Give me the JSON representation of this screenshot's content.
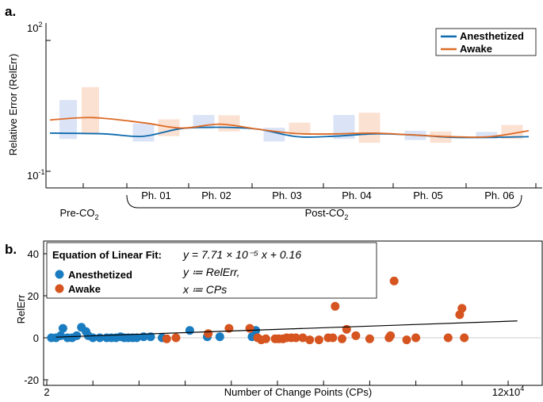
{
  "figure": {
    "panel_a_label": "a.",
    "panel_b_label": "b."
  },
  "chart_data": [
    {
      "type": "line",
      "panel": "a",
      "ylabel": "Relative Error (RelErr)",
      "yscale": "log",
      "ylim": [
        0.1,
        100
      ],
      "ytick_labels": {
        "top_base": "10",
        "top_exp": "2",
        "bottom_base": "10",
        "bottom_exp": "-1"
      },
      "categories": [
        "Pre-CO2",
        "Ph. 01",
        "Ph. 02",
        "Ph. 03",
        "Ph.  04",
        "Ph. 05",
        "Ph. 06"
      ],
      "category_labels": {
        "pre_base": "Pre-CO",
        "pre_sub": "2",
        "post_base": "Post-CO",
        "post_sub": "2",
        "phases": [
          "Ph. 01",
          "Ph. 02",
          "Ph. 03",
          "Ph.  04",
          "Ph. 05",
          "Ph. 06"
        ]
      },
      "legend": {
        "position": "top-right"
      },
      "colors": {
        "Anesthetized": "#0e6aad",
        "Awake": "#dd6a26",
        "Anesthetized_box": "#dbe4f6",
        "Awake_box": "#fbe1d2"
      },
      "series": [
        {
          "name": "Anesthetized",
          "ranges": [
            [
              0.55,
              4.3
            ],
            [
              0.48,
              1.25
            ],
            [
              0.95,
              1.95
            ],
            [
              0.48,
              1.0
            ],
            [
              0.55,
              1.95
            ],
            [
              0.52,
              0.85
            ],
            [
              0.56,
              0.8
            ]
          ],
          "curve": [
            [
              0.3,
              0.75
            ],
            [
              1.0,
              0.72
            ],
            [
              1.5,
              0.63
            ],
            [
              2.0,
              0.95
            ],
            [
              2.5,
              1.02
            ],
            [
              3.0,
              0.92
            ],
            [
              3.5,
              0.62
            ],
            [
              4.0,
              0.64
            ],
            [
              4.5,
              0.72
            ],
            [
              5.0,
              0.68
            ],
            [
              5.5,
              0.6
            ],
            [
              6.0,
              0.6
            ],
            [
              6.5,
              0.62
            ]
          ]
        },
        {
          "name": "Awake",
          "ranges": [
            [
              0.75,
              8.5
            ],
            [
              0.64,
              1.55
            ],
            [
              0.82,
              1.92
            ],
            [
              0.7,
              1.3
            ],
            [
              0.45,
              2.2
            ],
            [
              0.45,
              0.82
            ],
            [
              0.55,
              1.15
            ]
          ],
          "curve": [
            [
              0.3,
              1.5
            ],
            [
              0.85,
              1.7
            ],
            [
              1.5,
              1.3
            ],
            [
              2.0,
              0.98
            ],
            [
              2.5,
              1.2
            ],
            [
              3.0,
              0.92
            ],
            [
              3.5,
              0.73
            ],
            [
              4.0,
              0.72
            ],
            [
              4.5,
              0.75
            ],
            [
              5.0,
              0.68
            ],
            [
              5.5,
              0.62
            ],
            [
              6.0,
              0.62
            ],
            [
              6.5,
              0.85
            ]
          ]
        }
      ]
    },
    {
      "type": "scatter",
      "panel": "b",
      "xlabel": "Number of Change Points (CPs)",
      "ylabel": "RelErr",
      "xlim": [
        20000,
        120000
      ],
      "ylim": [
        -20,
        40
      ],
      "xtick_labels": {
        "left": "2",
        "right_base": "12x10",
        "right_exp": "4"
      },
      "yticks": [
        "40",
        "20",
        "0",
        "-20"
      ],
      "legend": {
        "position": "top-left"
      },
      "annotation": {
        "label": "Equation of Linear Fit:",
        "line1": "y = 7.71 × 10⁻⁵ x + 0.16",
        "line2": "y ≔ RelErr,",
        "line3": "x ≔ CPs"
      },
      "fit": {
        "slope": 7.71e-05,
        "intercept": 0.16,
        "color": "#000000"
      },
      "series": [
        {
          "name": "Anesthetized",
          "color": "#1a7cc0",
          "points": [
            [
              21000,
              0
            ],
            [
              22000,
              0
            ],
            [
              23000,
              1
            ],
            [
              23500,
              4.5
            ],
            [
              24500,
              0
            ],
            [
              25500,
              0
            ],
            [
              26500,
              1
            ],
            [
              27500,
              5
            ],
            [
              28500,
              3
            ],
            [
              29000,
              1
            ],
            [
              30000,
              0
            ],
            [
              31500,
              0
            ],
            [
              33000,
              0
            ],
            [
              34000,
              0
            ],
            [
              35000,
              0
            ],
            [
              36000,
              0.5
            ],
            [
              36800,
              0
            ],
            [
              37700,
              0
            ],
            [
              38600,
              0
            ],
            [
              39500,
              0
            ],
            [
              41000,
              0.5
            ],
            [
              42500,
              0.5
            ],
            [
              45000,
              0
            ],
            [
              51000,
              3.5
            ],
            [
              54800,
              0.5
            ],
            [
              57500,
              0.5
            ],
            [
              64500,
              0.5
            ],
            [
              65300,
              3.5
            ]
          ]
        },
        {
          "name": "Awake",
          "color": "#d5541f",
          "points": [
            [
              46000,
              -0.5
            ],
            [
              48000,
              0
            ],
            [
              55000,
              2
            ],
            [
              59500,
              4.5
            ],
            [
              64000,
              4.5
            ],
            [
              65700,
              0
            ],
            [
              66500,
              -1
            ],
            [
              67500,
              -0.5
            ],
            [
              69500,
              -0.5
            ],
            [
              70300,
              -0.5
            ],
            [
              71200,
              -0.5
            ],
            [
              72000,
              0
            ],
            [
              73000,
              0
            ],
            [
              74000,
              0
            ],
            [
              75500,
              0
            ],
            [
              77000,
              -1
            ],
            [
              79000,
              -1
            ],
            [
              81000,
              0
            ],
            [
              82000,
              0
            ],
            [
              82500,
              15
            ],
            [
              84000,
              -0.5
            ],
            [
              85000,
              4
            ],
            [
              87000,
              1
            ],
            [
              90000,
              -0.5
            ],
            [
              94200,
              0
            ],
            [
              94500,
              1
            ],
            [
              95300,
              27
            ],
            [
              98000,
              -1
            ],
            [
              100000,
              0
            ],
            [
              107000,
              0
            ],
            [
              109500,
              11
            ],
            [
              110000,
              14
            ],
            [
              110500,
              0
            ]
          ]
        }
      ]
    }
  ]
}
